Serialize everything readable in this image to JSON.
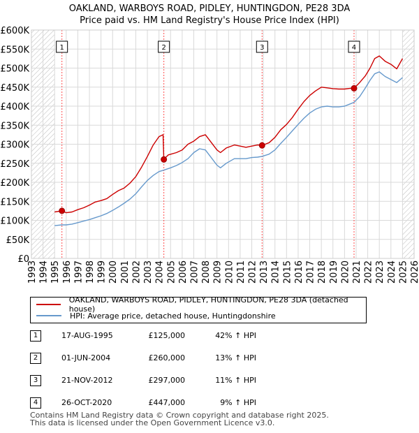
{
  "title_line1": "OAKLAND, WARBOYS ROAD, PIDLEY, HUNTINGDON, PE28 3DA",
  "title_line2": "Price paid vs. HM Land Registry's House Price Index (HPI)",
  "colors": {
    "property": "#cc0000",
    "hpi": "#6699cc",
    "marker_line": "#ff4d4d",
    "hatch": "#bbbbbb",
    "grid": "#d9d9d9"
  },
  "legend": {
    "property_label": "OAKLAND, WARBOYS ROAD, PIDLEY, HUNTINGDON, PE28 3DA (detached house)",
    "hpi_label": "HPI: Average price, detached house, Huntingdonshire"
  },
  "transactions": [
    {
      "num": "1",
      "date": "17-AUG-1995",
      "price": "£125,000",
      "hpi": "42% ↑ HPI"
    },
    {
      "num": "2",
      "date": "01-JUN-2004",
      "price": "£260,000",
      "hpi": "13% ↑ HPI"
    },
    {
      "num": "3",
      "date": "21-NOV-2012",
      "price": "£297,000",
      "hpi": "11% ↑ HPI"
    },
    {
      "num": "4",
      "date": "26-OCT-2020",
      "price": "£447,000",
      "hpi": "9% ↑ HPI"
    }
  ],
  "footer": {
    "line1": "Contains HM Land Registry data © Crown copyright and database right 2025.",
    "line2": "This data is licensed under the Open Government Licence v3.0."
  },
  "chart_data": {
    "type": "line",
    "title": "Price paid vs. HM Land Registry's House Price Index (HPI)",
    "xlim": [
      1993,
      2026
    ],
    "ylim": [
      0,
      600000
    ],
    "x_ticks": [
      1993,
      1994,
      1995,
      1996,
      1997,
      1998,
      1999,
      2000,
      2001,
      2002,
      2003,
      2004,
      2005,
      2006,
      2007,
      2008,
      2009,
      2010,
      2011,
      2012,
      2013,
      2014,
      2015,
      2016,
      2017,
      2018,
      2019,
      2020,
      2021,
      2022,
      2023,
      2024,
      2025,
      2026
    ],
    "y_ticks": [
      0,
      50000,
      100000,
      150000,
      200000,
      250000,
      300000,
      350000,
      400000,
      450000,
      500000,
      550000,
      600000
    ],
    "y_tick_labels": [
      "£0",
      "£50K",
      "£100K",
      "£150K",
      "£200K",
      "£250K",
      "£300K",
      "£350K",
      "£400K",
      "£450K",
      "£500K",
      "£550K",
      "£600K"
    ],
    "hatched_ranges": [
      [
        1993,
        1995.0
      ],
      [
        2025.0,
        2026
      ]
    ],
    "sales": [
      {
        "label": "1",
        "x": 1995.63,
        "y": 125000
      },
      {
        "label": "2",
        "x": 2004.42,
        "y": 260000
      },
      {
        "label": "3",
        "x": 2012.89,
        "y": 297000
      },
      {
        "label": "4",
        "x": 2020.82,
        "y": 447000
      }
    ],
    "series": [
      {
        "name": "OAKLAND, WARBOYS ROAD, PIDLEY, HUNTINGDON, PE28 3DA (detached house)",
        "x": [
          1995.0,
          1995.63,
          1996.0,
          1996.5,
          1997.0,
          1997.5,
          1998.0,
          1998.5,
          1999.0,
          1999.5,
          2000.0,
          2000.5,
          2001.0,
          2001.5,
          2002.0,
          2002.5,
          2003.0,
          2003.5,
          2004.0,
          2004.35,
          2004.42,
          2004.8,
          2005.5,
          2006.0,
          2006.5,
          2007.0,
          2007.5,
          2008.0,
          2008.5,
          2009.0,
          2009.3,
          2009.8,
          2010.5,
          2011.0,
          2011.5,
          2012.0,
          2012.5,
          2012.89,
          2013.5,
          2014.0,
          2014.5,
          2015.0,
          2015.5,
          2016.0,
          2016.5,
          2017.0,
          2017.5,
          2018.0,
          2018.5,
          2019.0,
          2019.5,
          2020.0,
          2020.5,
          2020.82,
          2021.3,
          2021.8,
          2022.2,
          2022.6,
          2023.0,
          2023.5,
          2024.0,
          2024.5,
          2025.0
        ],
        "values": [
          122000,
          125000,
          120000,
          122000,
          128000,
          133000,
          140000,
          148000,
          152000,
          157000,
          168000,
          178000,
          185000,
          198000,
          215000,
          240000,
          268000,
          298000,
          320000,
          325000,
          260000,
          272000,
          278000,
          285000,
          300000,
          308000,
          320000,
          325000,
          305000,
          285000,
          278000,
          290000,
          298000,
          295000,
          292000,
          295000,
          298000,
          297000,
          304000,
          318000,
          338000,
          352000,
          370000,
          392000,
          412000,
          428000,
          440000,
          450000,
          448000,
          446000,
          445000,
          445000,
          447000,
          447000,
          462000,
          480000,
          500000,
          525000,
          532000,
          518000,
          510000,
          498000,
          525000
        ]
      },
      {
        "name": "HPI: Average price, detached house, Huntingdonshire",
        "x": [
          1995.0,
          1995.63,
          1996.0,
          1996.5,
          1997.0,
          1997.5,
          1998.0,
          1998.5,
          1999.0,
          1999.5,
          2000.0,
          2000.5,
          2001.0,
          2001.5,
          2002.0,
          2002.5,
          2003.0,
          2003.5,
          2004.0,
          2004.42,
          2005.0,
          2005.5,
          2006.0,
          2006.5,
          2007.0,
          2007.5,
          2008.0,
          2008.5,
          2009.0,
          2009.3,
          2009.8,
          2010.5,
          2011.0,
          2011.5,
          2012.0,
          2012.5,
          2012.89,
          2013.5,
          2014.0,
          2014.5,
          2015.0,
          2015.5,
          2016.0,
          2016.5,
          2017.0,
          2017.5,
          2018.0,
          2018.5,
          2019.0,
          2019.5,
          2020.0,
          2020.5,
          2020.82,
          2021.3,
          2021.8,
          2022.2,
          2022.6,
          2023.0,
          2023.5,
          2024.0,
          2024.5,
          2025.0
        ],
        "values": [
          86000,
          88000,
          88000,
          90000,
          94000,
          98000,
          102000,
          107000,
          112000,
          118000,
          126000,
          135000,
          145000,
          156000,
          170000,
          188000,
          205000,
          218000,
          228000,
          232000,
          238000,
          244000,
          252000,
          262000,
          278000,
          288000,
          285000,
          265000,
          245000,
          238000,
          250000,
          262000,
          262000,
          262000,
          265000,
          266000,
          268000,
          274000,
          285000,
          302000,
          318000,
          335000,
          352000,
          368000,
          382000,
          392000,
          398000,
          400000,
          398000,
          398000,
          400000,
          406000,
          410000,
          425000,
          448000,
          468000,
          485000,
          490000,
          478000,
          470000,
          462000,
          475000
        ]
      }
    ]
  }
}
